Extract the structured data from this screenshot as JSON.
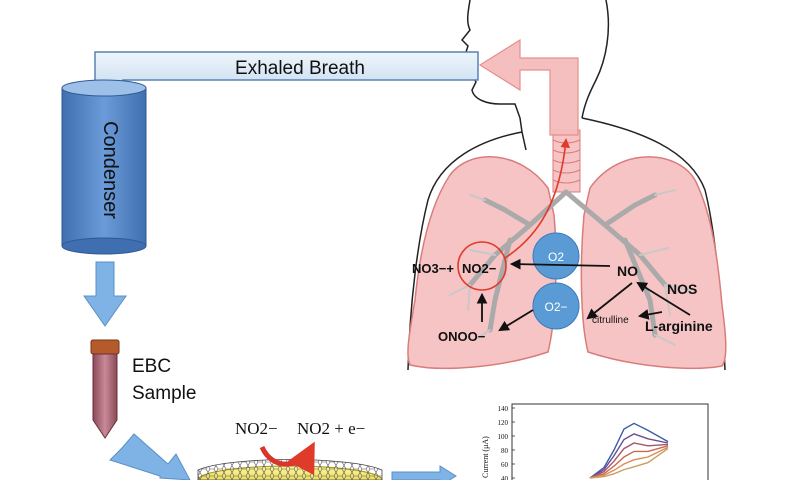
{
  "diagram": {
    "breath_label": "Exhaled Breath",
    "condenser_label": "Condenser",
    "sample_label_line1": "EBC",
    "sample_label_line2": "Sample",
    "species": {
      "no3_plus": "NO3−+",
      "no2": "NO2−",
      "o2": "O2",
      "superoxide": "O2−",
      "no": "NO",
      "nos": "NOS",
      "citrulline": "citrulline",
      "l_arginine": "L-arginine",
      "onoo": "ONOO−"
    },
    "electrode_reaction": {
      "reactant": "NO2−",
      "product": "NO2 + e−"
    }
  },
  "chart_data": {
    "type": "line",
    "ylabel": "Current (μA)",
    "yticks": [
      140,
      120,
      100,
      80,
      60,
      40
    ],
    "ylim": [
      40,
      140
    ],
    "series": [
      {
        "values": [
          40,
          55,
          80,
          110,
          118,
          108,
          92
        ]
      },
      {
        "values": [
          40,
          52,
          72,
          95,
          103,
          96,
          90
        ]
      },
      {
        "values": [
          40,
          49,
          64,
          82,
          90,
          86,
          88
        ]
      },
      {
        "values": [
          40,
          46,
          57,
          70,
          78,
          78,
          86
        ]
      },
      {
        "values": [
          40,
          44,
          51,
          60,
          66,
          70,
          84
        ]
      },
      {
        "values": [
          40,
          42,
          46,
          52,
          56,
          62,
          82
        ]
      }
    ]
  },
  "colors": {
    "condenser": "#4f7fc0",
    "tube_fill": "#dce9f5",
    "arrow_blue": "#7fb2e5",
    "lung_fill": "#f6c4c4",
    "lung_stroke": "#d97c7c",
    "circle_fill": "#5b9bd5",
    "red": "#e03a2a"
  }
}
